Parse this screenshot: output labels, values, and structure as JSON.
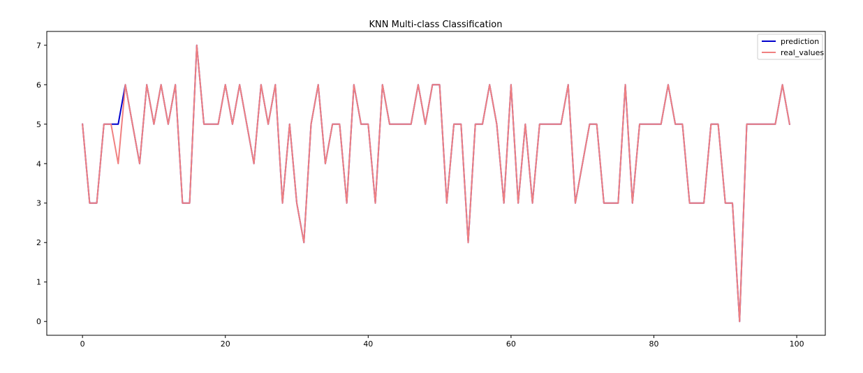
{
  "chart_data": {
    "type": "line",
    "title": "KNN Multi-class Classification",
    "xlabel": "",
    "ylabel": "",
    "xlim": [
      -5,
      104
    ],
    "ylim": [
      -0.35,
      7.35
    ],
    "xticks": [
      0,
      20,
      40,
      60,
      80,
      100
    ],
    "yticks": [
      0,
      1,
      2,
      3,
      4,
      5,
      6,
      7
    ],
    "grid": false,
    "legend_position": "top-right",
    "x": [
      0,
      1,
      2,
      3,
      4,
      5,
      6,
      7,
      8,
      9,
      10,
      11,
      12,
      13,
      14,
      15,
      16,
      17,
      18,
      19,
      20,
      21,
      22,
      23,
      24,
      25,
      26,
      27,
      28,
      29,
      30,
      31,
      32,
      33,
      34,
      35,
      36,
      37,
      38,
      39,
      40,
      41,
      42,
      43,
      44,
      45,
      46,
      47,
      48,
      49,
      50,
      51,
      52,
      53,
      54,
      55,
      56,
      57,
      58,
      59,
      60,
      61,
      62,
      63,
      64,
      65,
      66,
      67,
      68,
      69,
      70,
      71,
      72,
      73,
      74,
      75,
      76,
      77,
      78,
      79,
      80,
      81,
      82,
      83,
      84,
      85,
      86,
      87,
      88,
      89,
      90,
      91,
      92,
      93,
      94,
      95,
      96,
      97,
      98,
      99
    ],
    "series": [
      {
        "name": "prediction",
        "color": "#0000cc",
        "values": [
          5,
          3,
          3,
          5,
          5,
          5,
          6,
          5,
          4,
          6,
          5,
          6,
          5,
          6,
          3,
          3,
          7,
          5,
          5,
          5,
          6,
          5,
          6,
          5,
          4,
          6,
          5,
          6,
          3,
          5,
          3,
          2,
          5,
          6,
          4,
          5,
          5,
          3,
          6,
          5,
          5,
          3,
          6,
          5,
          5,
          5,
          5,
          6,
          5,
          6,
          6,
          3,
          5,
          5,
          2,
          5,
          5,
          6,
          5,
          3,
          6,
          3,
          5,
          3,
          5,
          5,
          5,
          5,
          6,
          3,
          4,
          5,
          5,
          3,
          3,
          3,
          6,
          3,
          5,
          5,
          5,
          5,
          6,
          5,
          5,
          3,
          3,
          3,
          5,
          5,
          3,
          3,
          0,
          5,
          5,
          5,
          5,
          5,
          6,
          5
        ]
      },
      {
        "name": "real_values",
        "color": "#f08080",
        "values": [
          5,
          3,
          3,
          5,
          5,
          4,
          6,
          5,
          4,
          6,
          5,
          6,
          5,
          6,
          3,
          3,
          7,
          5,
          5,
          5,
          6,
          5,
          6,
          5,
          4,
          6,
          5,
          6,
          3,
          5,
          3,
          2,
          5,
          6,
          4,
          5,
          5,
          3,
          6,
          5,
          5,
          3,
          6,
          5,
          5,
          5,
          5,
          6,
          5,
          6,
          6,
          3,
          5,
          5,
          2,
          5,
          5,
          6,
          5,
          3,
          6,
          3,
          5,
          3,
          5,
          5,
          5,
          5,
          6,
          3,
          4,
          5,
          5,
          3,
          3,
          3,
          6,
          3,
          5,
          5,
          5,
          5,
          6,
          5,
          5,
          3,
          3,
          3,
          5,
          5,
          3,
          3,
          0,
          5,
          5,
          5,
          5,
          5,
          6,
          5
        ]
      }
    ]
  }
}
